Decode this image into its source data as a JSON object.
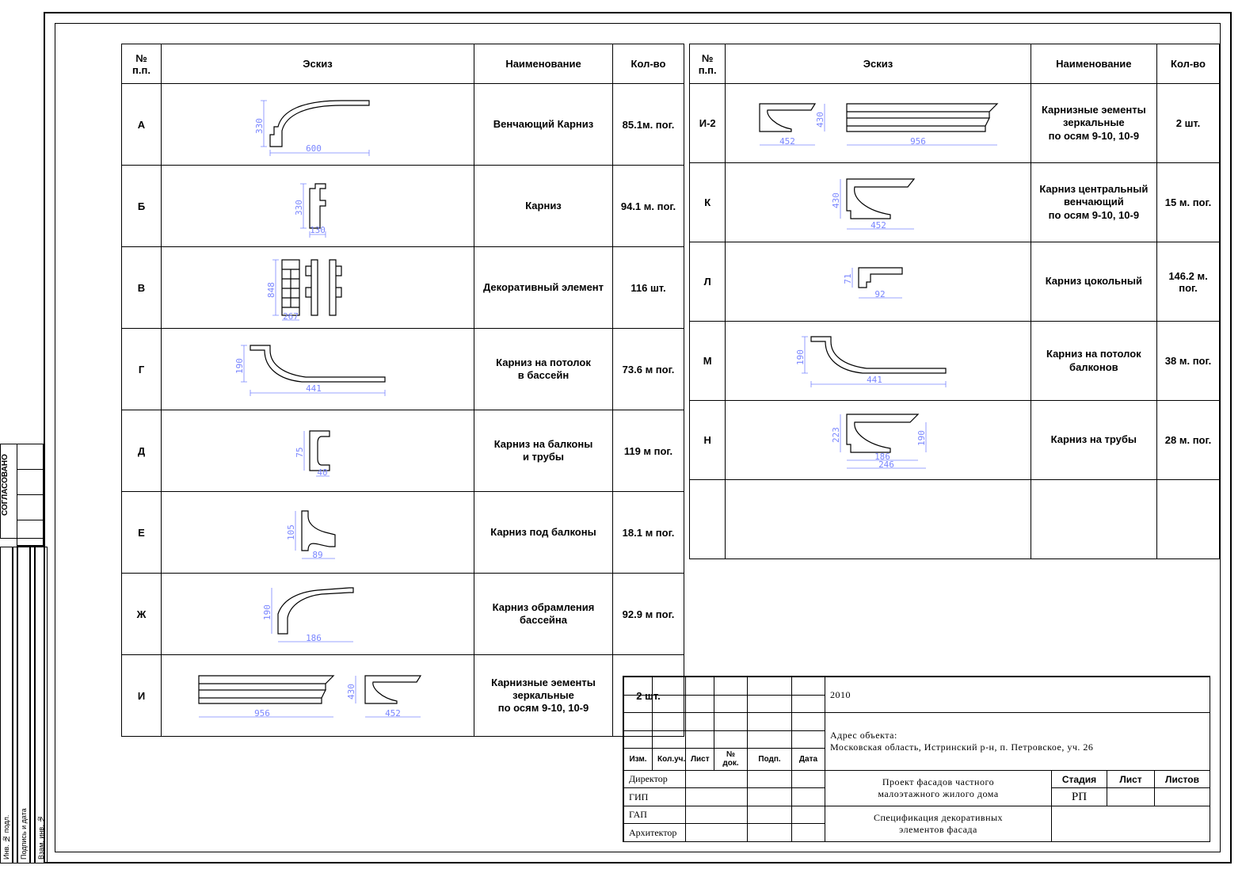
{
  "headers": {
    "idx": "№\nп.п.",
    "sketch": "Эскиз",
    "name": "Наименование",
    "qty": "Кол-во"
  },
  "dim_color": "#7a86ff",
  "left_rows": [
    {
      "id": "А",
      "name": "Венчающий Карниз",
      "qty": "85.1м. пог.",
      "dims": {
        "w": "600",
        "h": "330"
      },
      "shape": "crown"
    },
    {
      "id": "Б",
      "name": "Карниз",
      "qty": "94.1 м. пог.",
      "dims": {
        "w": "130",
        "h": "330"
      },
      "shape": "small-crown"
    },
    {
      "id": "В",
      "name": "Декоративный элемент",
      "qty": "116 шт.",
      "dims": {
        "w": "267",
        "h": "848"
      },
      "shape": "blocks"
    },
    {
      "id": "Г",
      "name": "Карниз на потолок\nв бассейн",
      "qty": "73.6 м пог.",
      "dims": {
        "w": "441",
        "h": "190"
      },
      "shape": "ceiling"
    },
    {
      "id": "Д",
      "name": "Карниз на балконы\nи трубы",
      "qty": "119 м пог.",
      "dims": {
        "w": "40",
        "h": "75"
      },
      "shape": "balcony"
    },
    {
      "id": "Е",
      "name": "Карниз под балконы",
      "qty": "18.1 м пог.",
      "dims": {
        "w": "89",
        "h": "105"
      },
      "shape": "under-balcony"
    },
    {
      "id": "Ж",
      "name": "Карниз обрамления\nбассейна",
      "qty": "92.9 м пог.",
      "dims": {
        "w": "186",
        "h": "190"
      },
      "shape": "pool-frame"
    },
    {
      "id": "И",
      "name": "Карнизные эементы\nзеркальные\nпо осям 9-10, 10-9",
      "qty": "2 шт.",
      "dims": {
        "w1": "956",
        "w2": "452",
        "h": "430"
      },
      "shape": "mirror-left"
    }
  ],
  "right_rows": [
    {
      "id": "И-2",
      "name": "Карнизные эементы\nзеркальные\nпо осям 9-10, 10-9",
      "qty": "2 шт.",
      "dims": {
        "w1": "452",
        "w2": "956",
        "h": "430"
      },
      "shape": "mirror-right"
    },
    {
      "id": "К",
      "name": "Карниз центральный\nвенчающий\nпо осям 9-10, 10-9",
      "qty": "15 м. пог.",
      "dims": {
        "w": "452",
        "h": "430"
      },
      "shape": "central-crown"
    },
    {
      "id": "Л",
      "name": "Карниз цокольный",
      "qty": "146.2 м. пог.",
      "dims": {
        "w": "92",
        "h": "71"
      },
      "shape": "plinth"
    },
    {
      "id": "М",
      "name": "Карниз на потолок\nбалконов",
      "qty": "38 м. пог.",
      "dims": {
        "w": "441",
        "h": "190"
      },
      "shape": "ceiling"
    },
    {
      "id": "Н",
      "name": "Карниз на трубы",
      "qty": "28 м. пог.",
      "dims": {
        "w": "186",
        "w2": "246",
        "h": "223",
        "h2": "190"
      },
      "shape": "pipe"
    },
    {
      "id": "",
      "name": "",
      "qty": "",
      "shape": "empty"
    }
  ],
  "side_labels": {
    "soglasovano": "СОГЛАСОВАНО",
    "inv": "Инв. № подл.",
    "podpis": "Подпись и дата",
    "vzam": "Взам. инв. №"
  },
  "title_block": {
    "rev_headers": [
      "Изм.",
      "Кол.уч.",
      "Лист",
      "№ док.",
      "Подп.",
      "Дата"
    ],
    "roles": [
      "Директор",
      "ГИП",
      "ГАП",
      "Архитектор"
    ],
    "year": "2010",
    "address_label": "Адрес объекта:",
    "address": "Московская область, Истринский р-н, п. Петровское, уч. 26",
    "project": "Проект фасадов частного\nмалоэтажного жилого дома",
    "sheet_title": "Спецификация декоративных\nэлементов фасада",
    "stage_h": "Стадия",
    "sheet_h": "Лист",
    "sheets_h": "Листов",
    "stage": "РП"
  }
}
